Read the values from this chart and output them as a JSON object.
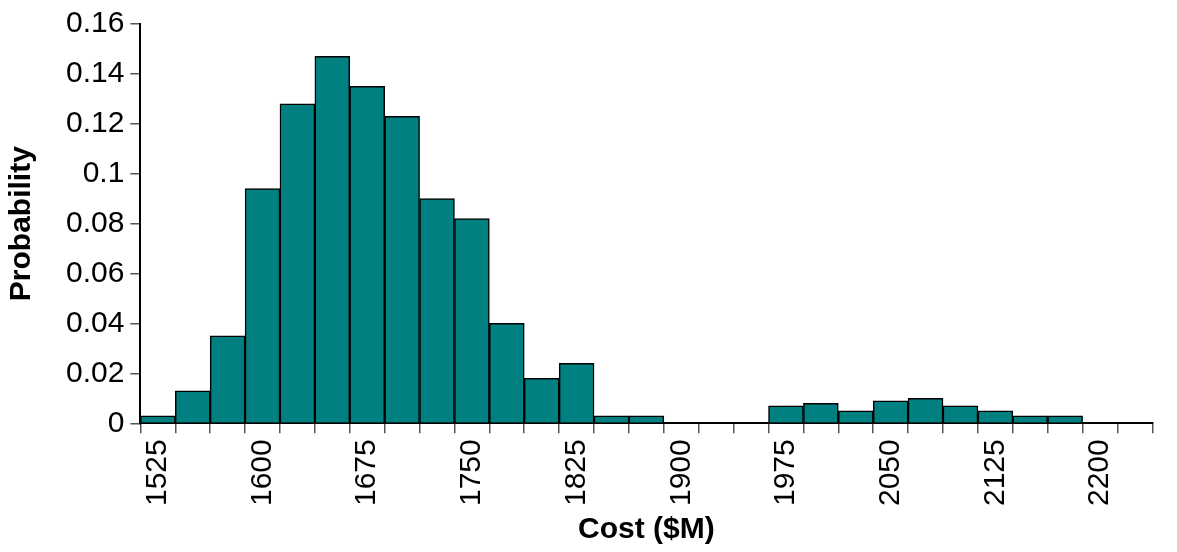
{
  "chart_data": {
    "type": "bar",
    "xlabel": "Cost ($M)",
    "ylabel": "Probability",
    "categories": [
      "1525",
      null,
      null,
      "1600",
      null,
      null,
      "1675",
      null,
      null,
      "1750",
      null,
      null,
      "1825",
      null,
      null,
      "1900",
      null,
      null,
      "1975",
      null,
      null,
      "2050",
      null,
      null,
      "2125",
      null,
      null,
      "2200",
      null
    ],
    "values": [
      0.003,
      0.013,
      0.035,
      0.094,
      0.128,
      0.147,
      0.135,
      0.123,
      0.09,
      0.082,
      0.04,
      0.018,
      0.024,
      0.003,
      0.003,
      0,
      0,
      0,
      0.007,
      0.008,
      0.005,
      0.009,
      0.01,
      0.007,
      0.005,
      0.003,
      0.003,
      0,
      0
    ],
    "color": "#008080",
    "ylim": [
      0,
      0.16
    ],
    "yticks": [
      0,
      0.02,
      0.04,
      0.06,
      0.08,
      0.1,
      0.12,
      0.14,
      0.16
    ],
    "grid": false,
    "legend": false
  }
}
